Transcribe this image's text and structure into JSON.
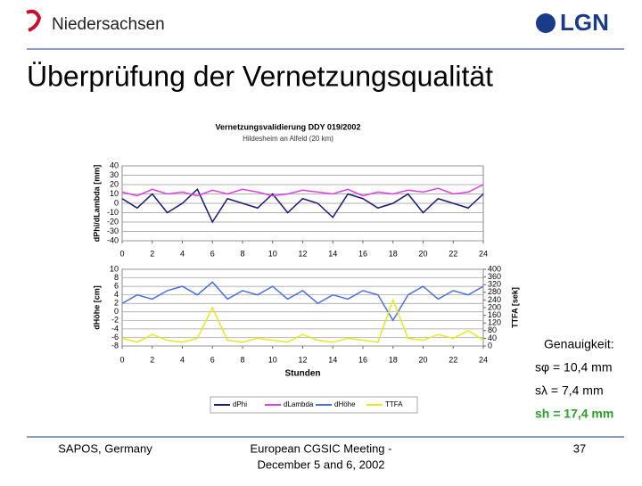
{
  "header": {
    "left": "Niedersachsen",
    "right": "LGN"
  },
  "title": "Überprüfung der Vernetzungsqualität",
  "chart_data": [
    {
      "type": "line",
      "title": "Vernetzungsvalidierung DDY 019/2002",
      "subtitle": "Hildesheim an Alfeld (20 km)",
      "y_label": "dPhi/dLambda [mm]",
      "x": [
        0,
        1,
        2,
        3,
        4,
        5,
        6,
        7,
        8,
        9,
        10,
        11,
        12,
        13,
        14,
        15,
        16,
        17,
        18,
        19,
        20,
        21,
        22,
        23,
        24
      ],
      "xlim": [
        0,
        24
      ],
      "xticks": [
        0,
        2,
        4,
        6,
        8,
        10,
        12,
        14,
        16,
        18,
        20,
        22,
        24
      ],
      "ylim": [
        -40,
        40
      ],
      "yticks": [
        40,
        30,
        20,
        10,
        0,
        -10,
        -20,
        -30,
        -40
      ],
      "grid": true,
      "series": [
        {
          "name": "dPhi",
          "color": "#1a1a7a",
          "values": [
            5,
            -5,
            10,
            -10,
            0,
            15,
            -20,
            5,
            0,
            -5,
            10,
            -10,
            5,
            0,
            -15,
            10,
            5,
            -5,
            0,
            10,
            -10,
            5,
            0,
            -5,
            10
          ]
        },
        {
          "name": "dLambda",
          "color": "#e040e0",
          "values": [
            12,
            8,
            15,
            10,
            12,
            8,
            14,
            10,
            15,
            12,
            8,
            10,
            14,
            12,
            10,
            15,
            8,
            12,
            10,
            14,
            12,
            16,
            10,
            12,
            20
          ]
        }
      ]
    },
    {
      "type": "line",
      "y_label": "dHöhe [cm]",
      "y2_label": "TTFA [sek]",
      "x_label": "Stunden",
      "x": [
        0,
        1,
        2,
        3,
        4,
        5,
        6,
        7,
        8,
        9,
        10,
        11,
        12,
        13,
        14,
        15,
        16,
        17,
        18,
        19,
        20,
        21,
        22,
        23,
        24
      ],
      "xlim": [
        0,
        24
      ],
      "xticks": [
        0,
        2,
        4,
        6,
        8,
        10,
        12,
        14,
        16,
        18,
        20,
        22,
        24
      ],
      "ylim": [
        -8,
        10
      ],
      "yticks": [
        10,
        8,
        6,
        4,
        2,
        0,
        -2,
        -4,
        -6,
        -8
      ],
      "y2lim": [
        0,
        400
      ],
      "y2ticks": [
        400,
        360,
        320,
        280,
        240,
        200,
        160,
        120,
        80,
        40,
        0
      ],
      "grid": true,
      "series": [
        {
          "name": "dHöhe",
          "color": "#4a70e0",
          "values": [
            2,
            4,
            3,
            5,
            6,
            4,
            7,
            3,
            5,
            4,
            6,
            3,
            5,
            2,
            4,
            3,
            5,
            4,
            -2,
            4,
            6,
            3,
            5,
            4,
            6
          ]
        },
        {
          "name": "TTFA",
          "color": "#e8e820",
          "axis": "y2",
          "values": [
            40,
            20,
            60,
            30,
            20,
            40,
            200,
            30,
            20,
            40,
            30,
            20,
            60,
            30,
            20,
            40,
            30,
            20,
            240,
            40,
            30,
            60,
            40,
            80,
            30
          ]
        }
      ]
    }
  ],
  "accuracy": {
    "heading": "Genauigkeit:",
    "lines": [
      "sφ = 10,4 mm",
      "sλ = 7,4 mm",
      "sh = 17,4 mm"
    ]
  },
  "footer": {
    "left": "SAPOS, Germany",
    "center": [
      "European CGSIC Meeting -",
      "December 5 and 6, 2002"
    ],
    "page": "37"
  }
}
